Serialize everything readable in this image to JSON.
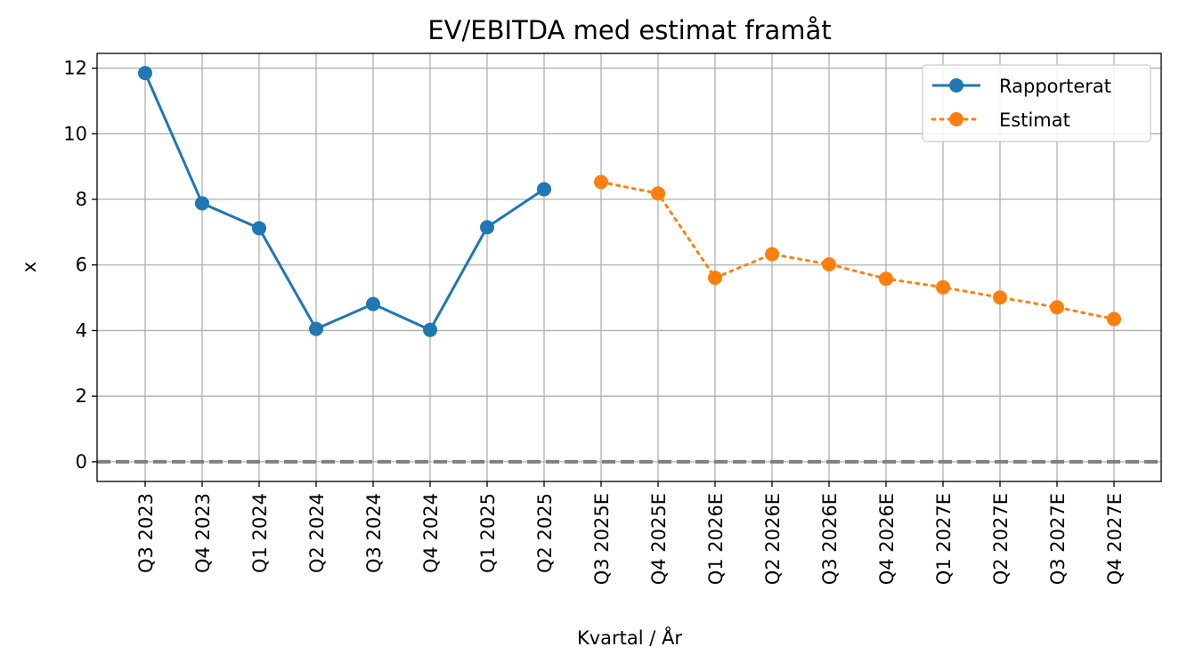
{
  "chart_data": {
    "type": "line",
    "title": "EV/EBITDA med estimat framåt",
    "xlabel": "Kvartal / År",
    "ylabel": "x",
    "categories": [
      "Q3 2023",
      "Q4 2023",
      "Q1 2024",
      "Q2 2024",
      "Q3 2024",
      "Q4 2024",
      "Q1 2025",
      "Q2 2025",
      "Q3 2025E",
      "Q4 2025E",
      "Q1 2026E",
      "Q2 2026E",
      "Q3 2026E",
      "Q4 2026E",
      "Q1 2027E",
      "Q2 2027E",
      "Q3 2027E",
      "Q4 2027E"
    ],
    "series": [
      {
        "name": "Rapporterat",
        "color": "#1f77b4",
        "line_style": "solid",
        "marker": "circle",
        "values": [
          11.85,
          7.88,
          7.12,
          4.05,
          4.81,
          4.02,
          7.15,
          8.31,
          null,
          null,
          null,
          null,
          null,
          null,
          null,
          null,
          null,
          null
        ]
      },
      {
        "name": "Estimat",
        "color": "#ff7f0e",
        "line_style": "dotted",
        "marker": "circle",
        "values": [
          null,
          null,
          null,
          null,
          null,
          null,
          null,
          null,
          8.53,
          8.18,
          5.61,
          6.33,
          6.02,
          5.58,
          5.32,
          5.01,
          4.71,
          4.35
        ]
      }
    ],
    "yticks": [
      "0",
      "2",
      "4",
      "6",
      "8",
      "10",
      "12"
    ],
    "ylim": [
      -0.6,
      12.45
    ],
    "reference_line": {
      "y": 0,
      "style": "dashed",
      "color": "#808080"
    },
    "grid": true,
    "legend_position": "top-right"
  }
}
